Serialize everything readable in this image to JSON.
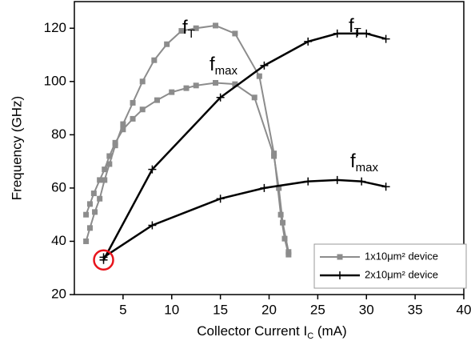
{
  "chart_data": {
    "type": "line",
    "xlabel": [
      "Collector Current I",
      "C",
      " (mA)"
    ],
    "ylabel": "Frequency (GHz)",
    "xlim": [
      0,
      40
    ],
    "xticks": [
      5,
      10,
      15,
      20,
      25,
      30,
      35,
      40
    ],
    "ylim": [
      20,
      130
    ],
    "yticks": [
      20,
      40,
      60,
      80,
      100,
      120
    ],
    "annotations": [
      {
        "text": "f",
        "sub": "T"
      },
      {
        "text": "f",
        "sub": "max"
      },
      {
        "text": "f",
        "sub": "T"
      },
      {
        "text": "f",
        "sub": "max"
      }
    ],
    "series": [
      {
        "name": "1x10μm² device",
        "color": "#8c8c8c",
        "marker": "square",
        "curves": [
          {
            "x": [
              1.2,
              1.6,
              2.1,
              2.6,
              3.1,
              3.6,
              4.2,
              5,
              6,
              7,
              8.2,
              9.5,
              11,
              12.5,
              14.5,
              16.5,
              19,
              20.5,
              21.2,
              21.6,
              22
            ],
            "values": [
              40,
              45,
              51,
              56,
              63,
              69,
              76,
              84,
              92,
              100,
              108,
              114,
              119,
              120,
              121,
              118,
              102,
              73,
              50,
              41,
              35
            ]
          },
          {
            "x": [
              1.2,
              1.6,
              2,
              2.6,
              3.1,
              3.6,
              4.2,
              5,
              6,
              7,
              8.5,
              10,
              11.5,
              12.5,
              14.5,
              16.5,
              18.5,
              20.5,
              21,
              21.4,
              22
            ],
            "values": [
              50,
              54,
              58,
              63,
              67,
              72,
              77,
              82,
              86,
              89.5,
              93,
              96,
              97.5,
              98.5,
              99.5,
              99,
              94,
              72,
              60,
              47,
              36
            ]
          }
        ]
      },
      {
        "name": "2x10μm² device",
        "color": "#000000",
        "marker": "plus",
        "curves": [
          {
            "x": [
              3,
              8,
              15,
              19.5,
              24,
              27,
              29,
              30,
              32
            ],
            "values": [
              33,
              67,
              94,
              106,
              115,
              118,
              118,
              118,
              116
            ]
          },
          {
            "x": [
              3,
              8,
              15,
              19.5,
              24,
              27,
              29.5,
              32
            ],
            "values": [
              34,
              46,
              56,
              60,
              62.5,
              63,
              62.5,
              60.5
            ]
          }
        ]
      }
    ]
  }
}
